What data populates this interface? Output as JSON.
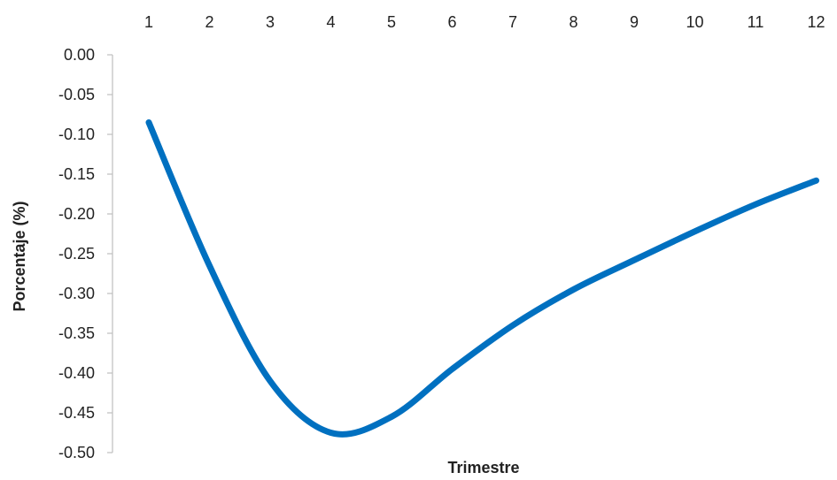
{
  "chart_data": {
    "type": "line",
    "title": "",
    "xlabel": "Trimestre",
    "ylabel": "Porcentaje (%)",
    "x_axis_position": "top",
    "x": [
      1,
      2,
      3,
      4,
      5,
      6,
      7,
      8,
      9,
      10,
      11,
      12
    ],
    "x_tick_labels": [
      "1",
      "2",
      "3",
      "4",
      "5",
      "6",
      "7",
      "8",
      "9",
      "10",
      "11",
      "12"
    ],
    "y_tick_labels": [
      "0.00",
      "-0.05",
      "-0.10",
      "-0.15",
      "-0.20",
      "-0.25",
      "-0.30",
      "-0.35",
      "-0.40",
      "-0.45",
      "-0.50"
    ],
    "ylim": [
      -0.5,
      0.0
    ],
    "grid": false,
    "series": [
      {
        "values": [
          -0.085,
          -0.265,
          -0.41,
          -0.475,
          -0.455,
          -0.395,
          -0.34,
          -0.295,
          -0.258,
          -0.222,
          -0.188,
          -0.158
        ],
        "color": "#0070C0"
      }
    ]
  }
}
